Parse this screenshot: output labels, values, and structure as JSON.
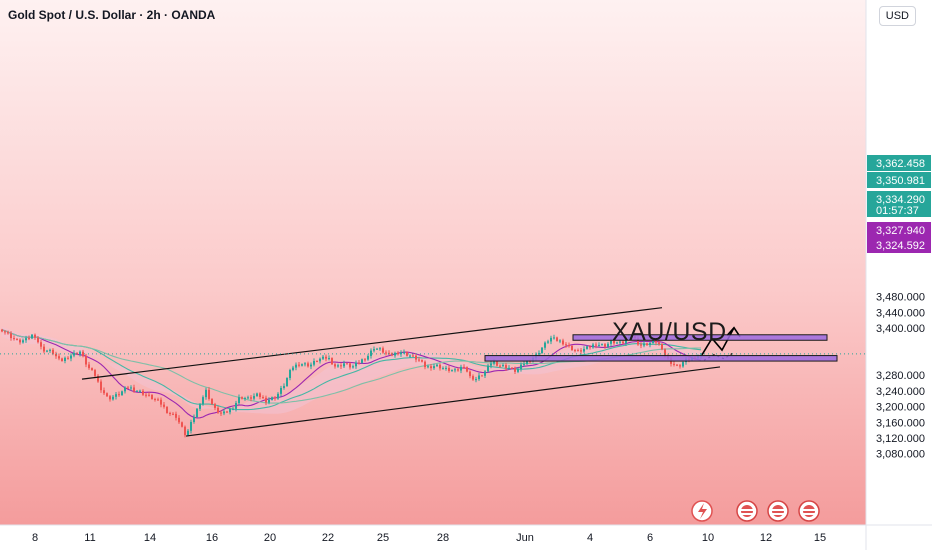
{
  "header": {
    "title": "Gold Spot / U.S. Dollar · 2h · OANDA",
    "currency": "USD"
  },
  "annotation": {
    "symbol": "XAU/USD"
  },
  "colors": {
    "background_top": "#fde6e6",
    "background_bottom": "#f6a2a2",
    "bull_candle": "#26a69a",
    "bear_candle": "#ef5350",
    "zone_fill": "#9c6ae0",
    "cloud_fill": "#f3c3d3",
    "ma_teal": "#45b7a5",
    "ma_purple": "#9c27b0",
    "channel_line": "#111111"
  },
  "chart_data": {
    "type": "candlestick",
    "title": "Gold Spot / U.S. Dollar · 2h · OANDA",
    "y_unit": "USD",
    "ylim": [
      3050,
      3495
    ],
    "y_ticks": [
      "3,480.000",
      "3,440.000",
      "3,400.000",
      "3,280.000",
      "3,240.000",
      "3,200.000",
      "3,160.000",
      "3,120.000",
      "3,080.000"
    ],
    "x_ticks": [
      "8",
      "11",
      "14",
      "16",
      "20",
      "22",
      "25",
      "28",
      "Jun",
      "4",
      "6",
      "10",
      "12",
      "15"
    ],
    "price_labels": [
      {
        "text": "3,362.458",
        "value": 3362.458,
        "color": "#26a69a"
      },
      {
        "text": "3,350.981",
        "value": 3350.981,
        "color": "#26a69a"
      },
      {
        "text": "3,334.290",
        "value": 3334.29,
        "color": "#26a69a",
        "countdown": "01:57:37"
      },
      {
        "text": "3,327.940",
        "value": 3327.94,
        "color": "#9c27b0"
      },
      {
        "text": "3,324.592",
        "value": 3324.592,
        "color": "#9c27b0"
      }
    ],
    "price_path": [
      [
        0,
        3400
      ],
      [
        10,
        3380
      ],
      [
        18,
        3365
      ],
      [
        26,
        3370
      ],
      [
        34,
        3385
      ],
      [
        42,
        3345
      ],
      [
        52,
        3340
      ],
      [
        60,
        3315
      ],
      [
        70,
        3330
      ],
      [
        80,
        3340
      ],
      [
        88,
        3300
      ],
      [
        95,
        3280
      ],
      [
        100,
        3250
      ],
      [
        108,
        3220
      ],
      [
        118,
        3230
      ],
      [
        128,
        3250
      ],
      [
        138,
        3240
      ],
      [
        150,
        3225
      ],
      [
        160,
        3210
      ],
      [
        168,
        3185
      ],
      [
        176,
        3175
      ],
      [
        186,
        3125
      ],
      [
        194,
        3175
      ],
      [
        200,
        3210
      ],
      [
        206,
        3240
      ],
      [
        214,
        3195
      ],
      [
        222,
        3180
      ],
      [
        232,
        3195
      ],
      [
        240,
        3225
      ],
      [
        248,
        3220
      ],
      [
        258,
        3230
      ],
      [
        266,
        3215
      ],
      [
        276,
        3225
      ],
      [
        284,
        3255
      ],
      [
        292,
        3300
      ],
      [
        300,
        3310
      ],
      [
        310,
        3305
      ],
      [
        318,
        3320
      ],
      [
        328,
        3325
      ],
      [
        336,
        3300
      ],
      [
        344,
        3310
      ],
      [
        352,
        3300
      ],
      [
        360,
        3315
      ],
      [
        368,
        3330
      ],
      [
        374,
        3350
      ],
      [
        380,
        3345
      ],
      [
        390,
        3330
      ],
      [
        400,
        3340
      ],
      [
        410,
        3330
      ],
      [
        418,
        3320
      ],
      [
        426,
        3300
      ],
      [
        436,
        3305
      ],
      [
        446,
        3295
      ],
      [
        456,
        3290
      ],
      [
        464,
        3305
      ],
      [
        470,
        3275
      ],
      [
        476,
        3270
      ],
      [
        484,
        3285
      ],
      [
        492,
        3315
      ],
      [
        500,
        3305
      ],
      [
        508,
        3300
      ],
      [
        516,
        3290
      ],
      [
        524,
        3310
      ],
      [
        530,
        3320
      ],
      [
        536,
        3330
      ],
      [
        542,
        3350
      ],
      [
        550,
        3375
      ],
      [
        556,
        3370
      ],
      [
        562,
        3365
      ],
      [
        570,
        3350
      ],
      [
        578,
        3340
      ],
      [
        588,
        3350
      ],
      [
        596,
        3360
      ],
      [
        604,
        3355
      ],
      [
        612,
        3365
      ],
      [
        622,
        3360
      ],
      [
        630,
        3385
      ],
      [
        634,
        3375
      ],
      [
        640,
        3355
      ],
      [
        648,
        3360
      ],
      [
        656,
        3365
      ],
      [
        662,
        3350
      ],
      [
        666,
        3325
      ],
      [
        672,
        3310
      ],
      [
        678,
        3300
      ],
      [
        684,
        3315
      ],
      [
        690,
        3320
      ],
      [
        696,
        3330
      ],
      [
        702,
        3328
      ]
    ],
    "lines": [
      {
        "name": "channel-upper",
        "from": [
          82,
          3270
        ],
        "to": [
          662,
          3452
        ]
      },
      {
        "name": "channel-lower",
        "from": [
          186,
          3125
        ],
        "to": [
          720,
          3301
        ]
      },
      {
        "name": "projection",
        "points": [
          [
            702,
            3332
          ],
          [
            712,
            3374
          ],
          [
            722,
            3344
          ],
          [
            734,
            3401
          ]
        ]
      }
    ],
    "zones": [
      {
        "name": "resistance-zone",
        "x1": 573,
        "x2": 827,
        "y_top": 3383,
        "y_bottom": 3369
      },
      {
        "name": "support-zone",
        "x1": 485,
        "x2": 837,
        "y_top": 3330,
        "y_bottom": 3316
      }
    ]
  }
}
